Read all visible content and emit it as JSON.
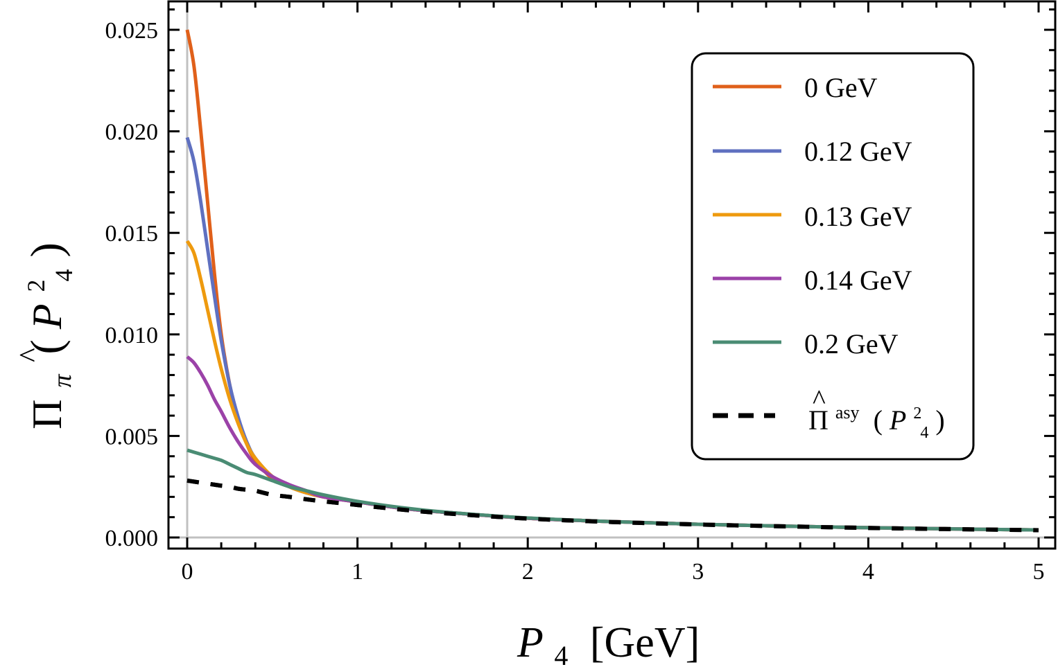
{
  "chart_data": {
    "type": "line",
    "title": "",
    "xlabel": "P_4 [GeV]",
    "xlabel_parts": {
      "main": "P",
      "sub": "4",
      "unit": "[GeV]"
    },
    "ylabel": "Π̂_π (P_4^2)",
    "ylabel_parts": {
      "main": "Π",
      "hat": "^",
      "sub": "π",
      "arg_main": "P",
      "arg_sub": "4",
      "arg_sup": "2"
    },
    "xlim": [
      0,
      5
    ],
    "ylim": [
      0,
      0.025
    ],
    "xticks": [
      0,
      1,
      2,
      3,
      4,
      5
    ],
    "xtick_labels": [
      "0",
      "1",
      "2",
      "3",
      "4",
      "5"
    ],
    "yticks": [
      0,
      0.005,
      0.01,
      0.015,
      0.02,
      0.025
    ],
    "ytick_labels": [
      "0.000",
      "0.005",
      "0.010",
      "0.015",
      "0.020",
      "0.025"
    ],
    "grid": false,
    "legend_position": "top-right",
    "x": [
      0,
      0.04,
      0.08,
      0.12,
      0.16,
      0.2,
      0.25,
      0.3,
      0.35,
      0.4,
      0.5,
      0.6,
      0.7,
      0.8,
      1.0,
      1.25,
      1.5,
      2.0,
      2.5,
      3.0,
      3.5,
      4.0,
      4.5,
      5.0
    ],
    "series": [
      {
        "name": "0 GeV",
        "color": "#E0601A",
        "dash": false,
        "values": [
          0.025,
          0.0232,
          0.02,
          0.0165,
          0.013,
          0.01,
          0.0075,
          0.0058,
          0.0046,
          0.0038,
          0.0029,
          0.0025,
          0.0022,
          0.002,
          0.00175,
          0.00145,
          0.00125,
          0.00095,
          0.00078,
          0.00065,
          0.00056,
          0.00048,
          0.00042,
          0.00037
        ]
      },
      {
        "name": "0.12 GeV",
        "color": "#5F70C0",
        "dash": false,
        "values": [
          0.0197,
          0.0185,
          0.0165,
          0.0142,
          0.0119,
          0.0097,
          0.0075,
          0.0059,
          0.0047,
          0.0039,
          0.003,
          0.0025,
          0.0022,
          0.002,
          0.00175,
          0.00145,
          0.00125,
          0.00095,
          0.00078,
          0.00065,
          0.00056,
          0.00048,
          0.00042,
          0.00037
        ]
      },
      {
        "name": "0.13 GeV",
        "color": "#EE9A0E",
        "dash": false,
        "values": [
          0.0146,
          0.014,
          0.0127,
          0.0112,
          0.0097,
          0.0083,
          0.0068,
          0.0056,
          0.0046,
          0.0039,
          0.003,
          0.0025,
          0.0022,
          0.002,
          0.00175,
          0.00145,
          0.00125,
          0.00095,
          0.00078,
          0.00065,
          0.00056,
          0.00048,
          0.00042,
          0.00037
        ]
      },
      {
        "name": "0.14 GeV",
        "color": "#9B42A8",
        "dash": false,
        "values": [
          0.0089,
          0.0086,
          0.0081,
          0.0075,
          0.0068,
          0.0062,
          0.0054,
          0.0047,
          0.0041,
          0.0036,
          0.003,
          0.0026,
          0.0023,
          0.002,
          0.00175,
          0.00145,
          0.00125,
          0.00095,
          0.00078,
          0.00065,
          0.00056,
          0.00048,
          0.00042,
          0.00037
        ]
      },
      {
        "name": "0.2 GeV",
        "color": "#4A8C74",
        "dash": false,
        "values": [
          0.0043,
          0.0042,
          0.0041,
          0.004,
          0.0039,
          0.0038,
          0.0036,
          0.0034,
          0.0032,
          0.0031,
          0.0028,
          0.0025,
          0.0023,
          0.0021,
          0.00178,
          0.00148,
          0.00126,
          0.00096,
          0.00078,
          0.00065,
          0.00056,
          0.00048,
          0.00042,
          0.00037
        ]
      },
      {
        "name": "Π̂^asy (P_4^2)",
        "color": "#000000",
        "dash": true,
        "values": [
          0.0028,
          0.00275,
          0.0027,
          0.00265,
          0.0026,
          0.00255,
          0.0025,
          0.0024,
          0.00235,
          0.0023,
          0.0021,
          0.002,
          0.00188,
          0.00178,
          0.0016,
          0.00138,
          0.0012,
          0.00093,
          0.00076,
          0.00064,
          0.00055,
          0.00047,
          0.00041,
          0.00036
        ]
      }
    ],
    "legend_labels": {
      "s0": "0 GeV",
      "s1": "0.12 GeV",
      "s2": "0.13 GeV",
      "s3": "0.14 GeV",
      "s4": "0.2 GeV",
      "s5_main": "Π",
      "s5_sup": "asy",
      "s5_arg_main": "P",
      "s5_arg_sub": "4",
      "s5_arg_sup": "2"
    }
  }
}
